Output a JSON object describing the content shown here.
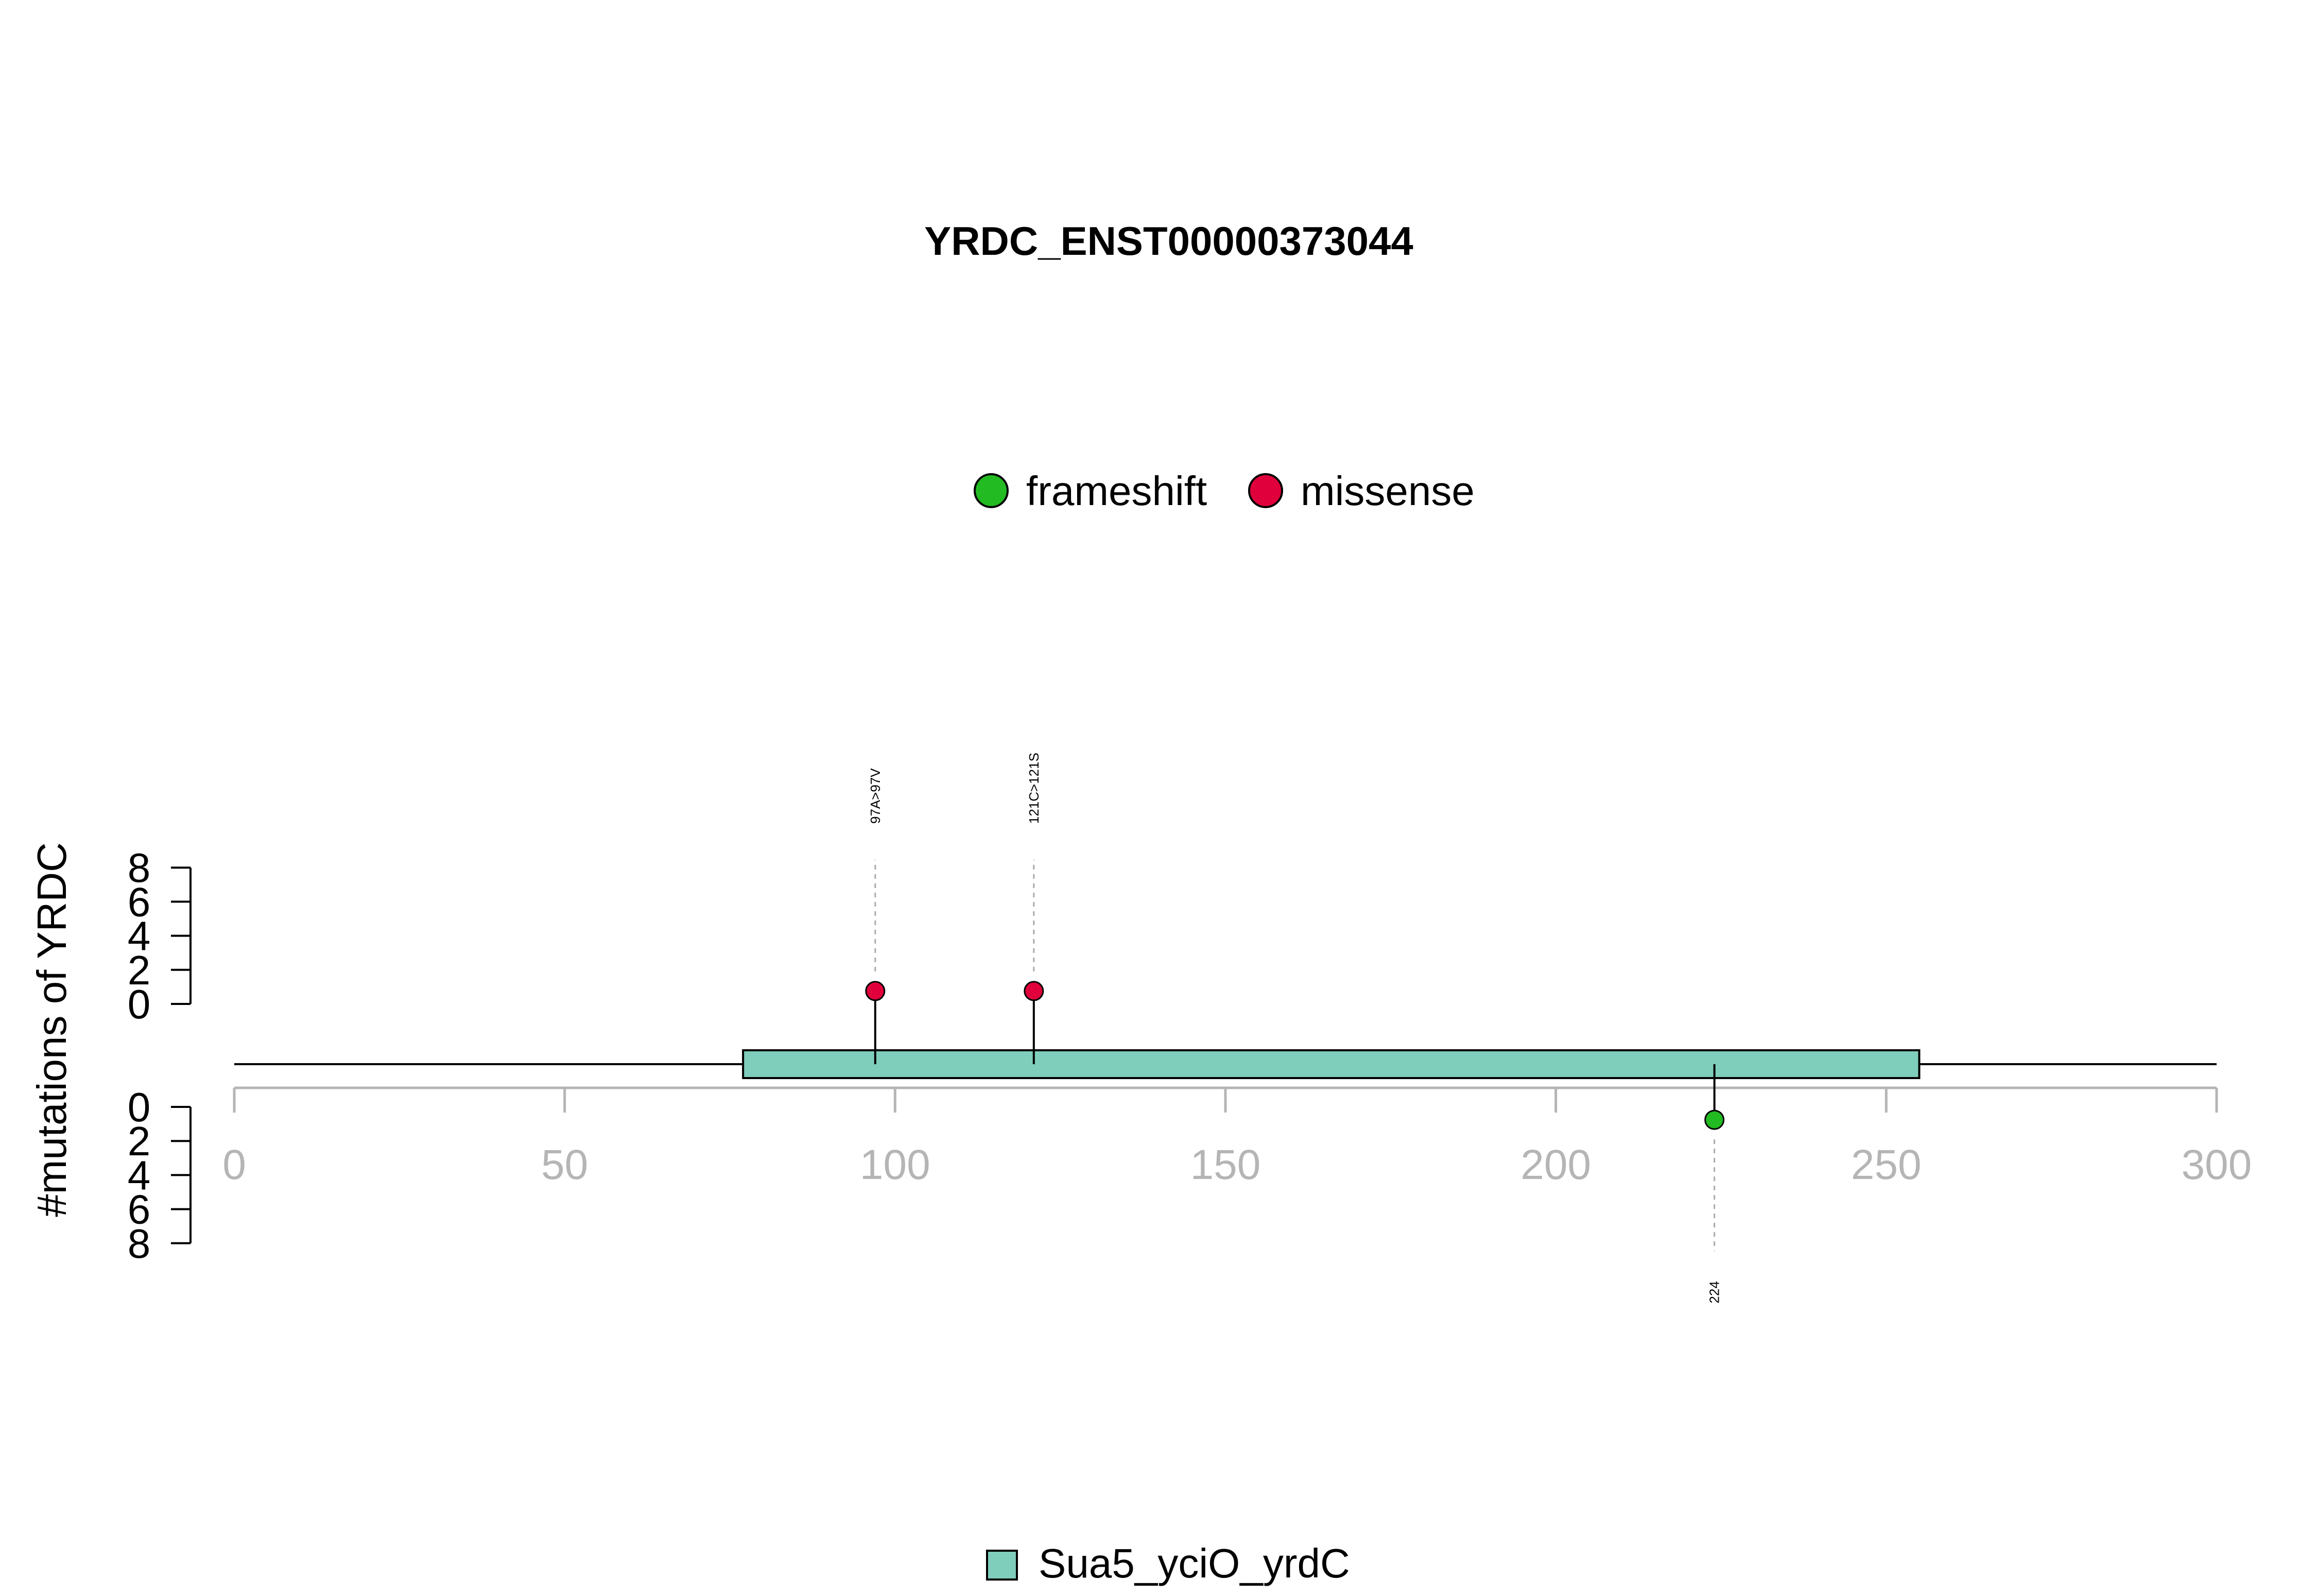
{
  "chart_data": {
    "type": "lollipop",
    "title": "YRDC_ENST00000373044",
    "ylabel": "#mutations of YRDC",
    "xlim": [
      0,
      300
    ],
    "x_ticks": [
      0,
      50,
      100,
      150,
      200,
      250,
      300
    ],
    "y_ticks": [
      0,
      2,
      4,
      6,
      8
    ],
    "mutation_legend": [
      {
        "name": "frameshift",
        "color": "#22bb22"
      },
      {
        "name": "missense",
        "color": "#e0003c"
      }
    ],
    "mutations": [
      {
        "position": 97,
        "count": 1,
        "type": "missense",
        "label": "97A>97V",
        "side": "top"
      },
      {
        "position": 121,
        "count": 1,
        "type": "missense",
        "label": "121C>121S",
        "side": "top"
      },
      {
        "position": 224,
        "count": 1,
        "type": "frameshift",
        "label": "224",
        "side": "bottom"
      }
    ],
    "domains": [
      {
        "name": "Sua5_yciO_yrdC",
        "start": 77,
        "end": 255,
        "color": "#7fcdbb"
      }
    ]
  }
}
